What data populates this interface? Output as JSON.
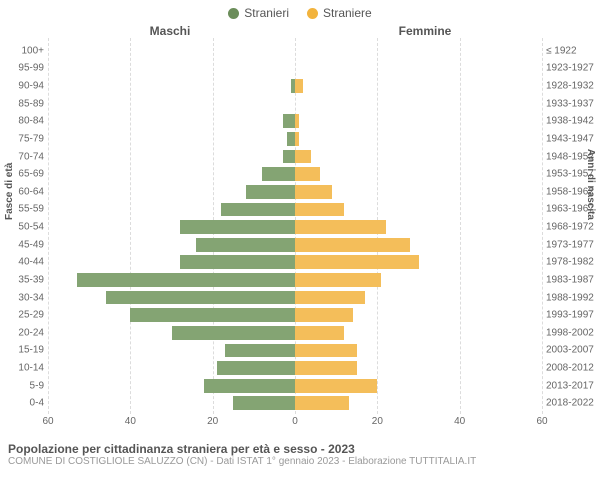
{
  "legend": {
    "left": {
      "label": "Stranieri",
      "color": "#6b8d5a"
    },
    "right": {
      "label": "Straniere",
      "color": "#f2b33d"
    }
  },
  "column_titles": {
    "left": "Maschi",
    "right": "Femmine"
  },
  "y_axis_left_title": "Fasce di età",
  "y_axis_right_title": "Anni di nascita",
  "chart": {
    "type": "pyramid-bar",
    "x_max": 60,
    "x_ticks_left": [
      60,
      40,
      20,
      0
    ],
    "x_ticks_right": [
      0,
      20,
      40,
      60
    ],
    "grid_color": "#dcdcdc",
    "background_color": "#ffffff",
    "bar_fill_left": "#84a473",
    "bar_fill_right": "#f4be5a",
    "rows": [
      {
        "age": "100+",
        "birth": "≤ 1922",
        "m": 0,
        "f": 0
      },
      {
        "age": "95-99",
        "birth": "1923-1927",
        "m": 0,
        "f": 0
      },
      {
        "age": "90-94",
        "birth": "1928-1932",
        "m": 1,
        "f": 2
      },
      {
        "age": "85-89",
        "birth": "1933-1937",
        "m": 0,
        "f": 0
      },
      {
        "age": "80-84",
        "birth": "1938-1942",
        "m": 3,
        "f": 1
      },
      {
        "age": "75-79",
        "birth": "1943-1947",
        "m": 2,
        "f": 1
      },
      {
        "age": "70-74",
        "birth": "1948-1952",
        "m": 3,
        "f": 4
      },
      {
        "age": "65-69",
        "birth": "1953-1957",
        "m": 8,
        "f": 6
      },
      {
        "age": "60-64",
        "birth": "1958-1962",
        "m": 12,
        "f": 9
      },
      {
        "age": "55-59",
        "birth": "1963-1967",
        "m": 18,
        "f": 12
      },
      {
        "age": "50-54",
        "birth": "1968-1972",
        "m": 28,
        "f": 22
      },
      {
        "age": "45-49",
        "birth": "1973-1977",
        "m": 24,
        "f": 28
      },
      {
        "age": "40-44",
        "birth": "1978-1982",
        "m": 28,
        "f": 30
      },
      {
        "age": "35-39",
        "birth": "1983-1987",
        "m": 53,
        "f": 21
      },
      {
        "age": "30-34",
        "birth": "1988-1992",
        "m": 46,
        "f": 17
      },
      {
        "age": "25-29",
        "birth": "1993-1997",
        "m": 40,
        "f": 14
      },
      {
        "age": "20-24",
        "birth": "1998-2002",
        "m": 30,
        "f": 12
      },
      {
        "age": "15-19",
        "birth": "2003-2007",
        "m": 17,
        "f": 15
      },
      {
        "age": "10-14",
        "birth": "2008-2012",
        "m": 19,
        "f": 15
      },
      {
        "age": "5-9",
        "birth": "2013-2017",
        "m": 22,
        "f": 20
      },
      {
        "age": "0-4",
        "birth": "2018-2022",
        "m": 15,
        "f": 13
      }
    ]
  },
  "footer": {
    "title": "Popolazione per cittadinanza straniera per età e sesso - 2023",
    "source": "COMUNE DI COSTIGLIOLE SALUZZO (CN) - Dati ISTAT 1° gennaio 2023 - Elaborazione TUTTITALIA.IT"
  }
}
